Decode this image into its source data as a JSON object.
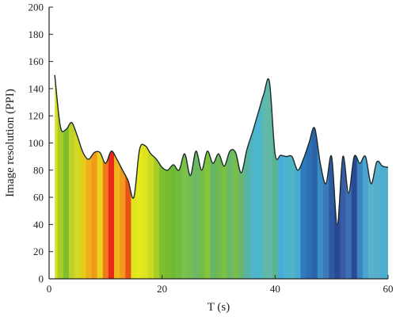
{
  "chart_data": {
    "type": "area",
    "title": "",
    "xlabel": "T (s)",
    "ylabel": "Image resolution (PPI)",
    "xlim": [
      0,
      60
    ],
    "ylim": [
      0,
      200
    ],
    "xticks": [
      0,
      20,
      40,
      60
    ],
    "yticks": [
      0,
      20,
      40,
      60,
      80,
      100,
      120,
      140,
      160,
      180,
      200
    ],
    "grid": false,
    "legend": "none",
    "line_color": "#1a2a2a",
    "x": [
      1,
      2,
      3,
      4,
      5,
      6,
      7,
      8,
      9,
      10,
      11,
      12,
      13,
      14,
      15,
      16,
      17,
      18,
      19,
      20,
      21,
      22,
      23,
      24,
      25,
      26,
      27,
      28,
      29,
      30,
      31,
      32,
      33,
      34,
      35,
      36,
      37,
      38,
      39,
      40,
      41,
      42,
      43,
      44,
      45,
      46,
      47,
      48,
      49,
      50,
      51,
      52,
      53,
      54,
      55,
      56,
      57,
      58,
      59,
      60
    ],
    "values": [
      150,
      112,
      110,
      115,
      105,
      93,
      88,
      93,
      93,
      85,
      94,
      88,
      80,
      72,
      60,
      95,
      98,
      92,
      88,
      82,
      80,
      84,
      80,
      92,
      76,
      94,
      80,
      94,
      85,
      92,
      83,
      94,
      93,
      78,
      95,
      108,
      122,
      136,
      145,
      92,
      91,
      90,
      90,
      80,
      88,
      100,
      111,
      85,
      70,
      90,
      40,
      90,
      63,
      90,
      85,
      90,
      70,
      86,
      83,
      82
    ],
    "band_colors": [
      "#d8e020",
      "#a8cc28",
      "#7ebe2e",
      "#c0d228",
      "#d0da22",
      "#e4cc1a",
      "#f0b01a",
      "#f29a18",
      "#e8d41c",
      "#f07a1a",
      "#e82a18",
      "#f0b41c",
      "#f29a1a",
      "#e85418",
      "#e2e41e",
      "#e6e820",
      "#dee41e",
      "#cadc22",
      "#a8cc26",
      "#80c02c",
      "#78bc30",
      "#6cba36",
      "#72bc40",
      "#7cc24a",
      "#74bc56",
      "#6cb864",
      "#72bc4a",
      "#84c43c",
      "#66b666",
      "#70ba52",
      "#7ac044",
      "#6ab86c",
      "#76be4c",
      "#6ab66e",
      "#58b4a2",
      "#50b4c2",
      "#4ab6d4",
      "#5cb8b0",
      "#62b8a4",
      "#5ab692",
      "#48acd8",
      "#4cb2d6",
      "#50b4c2",
      "#48aad4",
      "#2e7cbe",
      "#2e6fb4",
      "#2c64ac",
      "#3a8cc4",
      "#3a7ab6",
      "#2e5aa2",
      "#2a4896",
      "#3a5ca6",
      "#3c70b4",
      "#2a4a98",
      "#3a84c0",
      "#4aa4d0",
      "#5ab2c8",
      "#56b0cc",
      "#4cacd2",
      "#52b0c4"
    ]
  }
}
